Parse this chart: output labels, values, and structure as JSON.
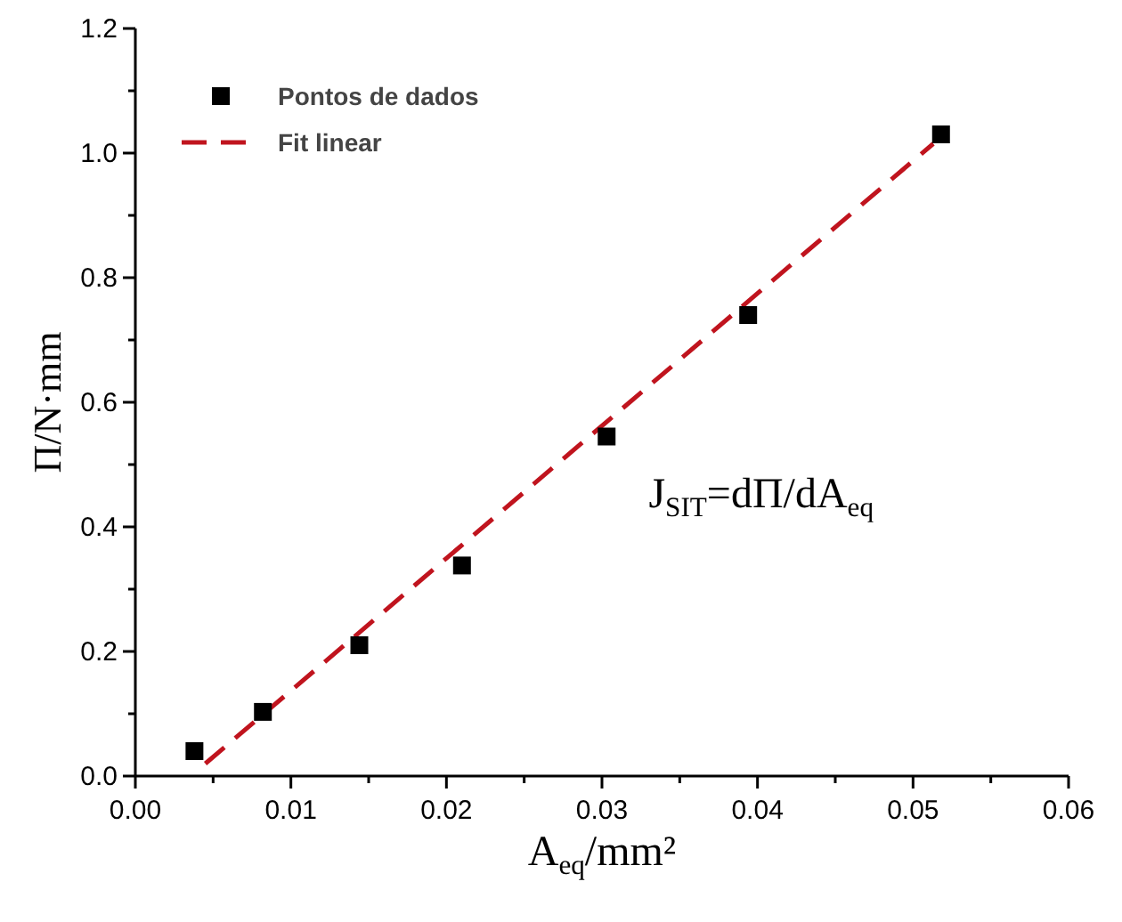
{
  "chart_data": {
    "type": "scatter",
    "xlabel": "A$_{eq}$/mm²",
    "ylabel": "Π/N·mm",
    "xlim": [
      0,
      0.06
    ],
    "ylim": [
      0,
      1.2
    ],
    "xticks": [
      {
        "value": 0,
        "label": "0.00"
      },
      {
        "value": 0.005,
        "label": null
      },
      {
        "value": 0.01,
        "label": "0.01"
      },
      {
        "value": 0.015,
        "label": null
      },
      {
        "value": 0.02,
        "label": "0.02"
      },
      {
        "value": 0.025,
        "label": null
      },
      {
        "value": 0.03,
        "label": "0.03"
      },
      {
        "value": 0.035,
        "label": null
      },
      {
        "value": 0.04,
        "label": "0.04"
      },
      {
        "value": 0.045,
        "label": null
      },
      {
        "value": 0.05,
        "label": "0.05"
      },
      {
        "value": 0.055,
        "label": null
      },
      {
        "value": 0.06,
        "label": "0.06"
      }
    ],
    "yticks": [
      {
        "value": 0,
        "label": "0.0"
      },
      {
        "value": 0.1,
        "label": null
      },
      {
        "value": 0.2,
        "label": "0.2"
      },
      {
        "value": 0.3,
        "label": null
      },
      {
        "value": 0.4,
        "label": "0.4"
      },
      {
        "value": 0.5,
        "label": null
      },
      {
        "value": 0.6,
        "label": "0.6"
      },
      {
        "value": 0.7,
        "label": null
      },
      {
        "value": 0.8,
        "label": "0.8"
      },
      {
        "value": 0.9,
        "label": null
      },
      {
        "value": 1.0,
        "label": "1.0"
      },
      {
        "value": 1.1,
        "label": null
      },
      {
        "value": 1.2,
        "label": "1.2"
      }
    ],
    "series": [
      {
        "name": "Pontos de dados",
        "color": "#000000",
        "marker": "square",
        "x": [
          0.0038,
          0.0082,
          0.0144,
          0.021,
          0.0303,
          0.0394,
          0.0518
        ],
        "values": [
          0.04,
          0.103,
          0.21,
          0.338,
          0.545,
          0.74,
          1.03
        ]
      },
      {
        "name": "Fit linear",
        "type": "line",
        "color": "#c0141e",
        "line_style": "dashed",
        "marker": "none",
        "x": [
          0.0045,
          0.0513
        ],
        "values": [
          0.02,
          1.015
        ]
      }
    ],
    "legend": "top left",
    "grid": false,
    "annotations": [
      "J$_{SIT}$=dΠ/dA$_{eq}$"
    ]
  }
}
